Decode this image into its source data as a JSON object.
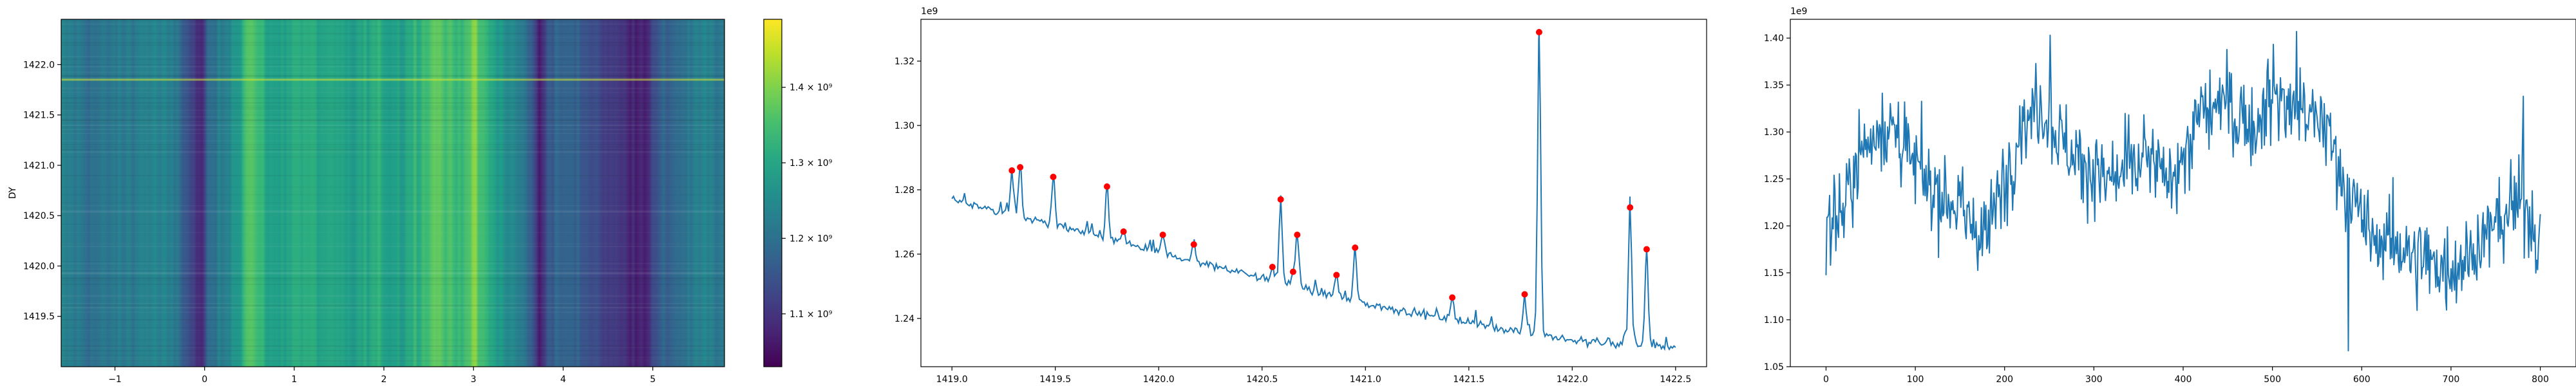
{
  "chart_data": [
    {
      "type": "heatmap",
      "title": "",
      "xlabel": "",
      "ylabel": "DY",
      "xlim": [
        -1.6,
        5.8
      ],
      "ylim": [
        1419.0,
        1422.45
      ],
      "xticks": [
        -1,
        0,
        1,
        2,
        3,
        4,
        5
      ],
      "xtick_labels": [
        "−1",
        "0",
        "1",
        "2",
        "3",
        "4",
        "5"
      ],
      "yticks": [
        1419.5,
        1420.0,
        1420.5,
        1421.0,
        1421.5,
        1422.0
      ],
      "ytick_labels": [
        "1419.5",
        "1420.0",
        "1420.5",
        "1421.0",
        "1421.5",
        "1422.0"
      ],
      "colormap": "viridis",
      "colorbar": {
        "range": [
          1030000000,
          1490000000
        ],
        "ticks": [
          1100000000,
          1200000000,
          1300000000,
          1400000000
        ],
        "tick_labels": [
          "1.1 × 10⁹",
          "1.2 × 10⁹",
          "1.3 × 10⁹",
          "1.4 × 10⁹"
        ]
      },
      "column_profile": {
        "x": [
          -1.6,
          -1.2,
          -0.9,
          -0.6,
          -0.3,
          -0.05,
          0.05,
          0.2,
          0.4,
          0.5,
          0.6,
          0.8,
          1.0,
          1.3,
          1.6,
          1.9,
          2.2,
          2.4,
          2.6,
          2.8,
          3.0,
          3.1,
          3.2,
          3.4,
          3.6,
          3.75,
          3.8,
          4.0,
          4.3,
          4.6,
          4.9,
          5.1,
          5.3,
          5.6,
          5.8
        ],
        "value": [
          1230000000,
          1200000000,
          1220000000,
          1240000000,
          1210000000,
          1070000000,
          1180000000,
          1230000000,
          1300000000,
          1380000000,
          1330000000,
          1280000000,
          1320000000,
          1300000000,
          1280000000,
          1310000000,
          1290000000,
          1340000000,
          1380000000,
          1330000000,
          1390000000,
          1340000000,
          1300000000,
          1250000000,
          1200000000,
          1060000000,
          1150000000,
          1180000000,
          1150000000,
          1100000000,
          1080000000,
          1160000000,
          1200000000,
          1230000000,
          1210000000
        ]
      },
      "bright_row_y": 1421.85
    },
    {
      "type": "line",
      "title": "",
      "xlabel": "",
      "ylabel": "",
      "offset_label": "1e9",
      "xlim": [
        1418.85,
        1422.65
      ],
      "ylim": [
        1.225,
        1.333
      ],
      "xticks": [
        1419.0,
        1419.5,
        1420.0,
        1420.5,
        1421.0,
        1421.5,
        1422.0,
        1422.5
      ],
      "xtick_labels": [
        "1419.0",
        "1419.5",
        "1420.0",
        "1420.5",
        "1421.0",
        "1421.5",
        "1422.0",
        "1422.5"
      ],
      "yticks": [
        1.24,
        1.26,
        1.28,
        1.3,
        1.32
      ],
      "ytick_labels": [
        "1.24",
        "1.26",
        "1.28",
        "1.30",
        "1.32"
      ],
      "line_color": "#1f77b4",
      "baseline": {
        "x": [
          1419.0,
          1420.0,
          1421.0,
          1422.0,
          1422.5
        ],
        "y": [
          1.277,
          1.2605,
          1.2445,
          1.233,
          1.231
        ]
      },
      "peaks": {
        "marker_color": "#ff0000",
        "x": [
          1419.29,
          1419.33,
          1419.49,
          1419.75,
          1419.83,
          1420.02,
          1420.17,
          1420.55,
          1420.59,
          1420.65,
          1420.67,
          1420.86,
          1420.95,
          1421.42,
          1421.77,
          1421.84,
          1422.28,
          1422.36
        ],
        "y": [
          1.286,
          1.287,
          1.284,
          1.281,
          1.267,
          1.266,
          1.263,
          1.256,
          1.277,
          1.2545,
          1.266,
          1.2535,
          1.262,
          1.2465,
          1.2475,
          1.329,
          1.2745,
          1.2615
        ]
      }
    },
    {
      "type": "line",
      "title": "",
      "xlabel": "",
      "ylabel": "",
      "offset_label": "1e9",
      "xlim": [
        -40,
        840
      ],
      "ylim": [
        1.05,
        1.42
      ],
      "xticks": [
        0,
        100,
        200,
        300,
        400,
        500,
        600,
        700,
        800
      ],
      "xtick_labels": [
        "0",
        "100",
        "200",
        "300",
        "400",
        "500",
        "600",
        "700",
        "800"
      ],
      "yticks": [
        1.05,
        1.1,
        1.15,
        1.2,
        1.25,
        1.3,
        1.35,
        1.4
      ],
      "ytick_labels": [
        "1.05",
        "1.10",
        "1.15",
        "1.20",
        "1.25",
        "1.30",
        "1.35",
        "1.40"
      ],
      "line_color": "#1f77b4",
      "n_points": 801,
      "trend": {
        "x": [
          0,
          20,
          40,
          60,
          80,
          100,
          120,
          140,
          160,
          180,
          200,
          220,
          240,
          260,
          280,
          300,
          320,
          340,
          360,
          380,
          400,
          420,
          440,
          460,
          480,
          500,
          520,
          540,
          560,
          580,
          600,
          620,
          640,
          660,
          680,
          700,
          720,
          740,
          760,
          780,
          800
        ],
        "y": [
          1.2,
          1.22,
          1.28,
          1.31,
          1.3,
          1.26,
          1.24,
          1.23,
          1.2,
          1.19,
          1.25,
          1.31,
          1.33,
          1.3,
          1.27,
          1.26,
          1.24,
          1.26,
          1.27,
          1.25,
          1.27,
          1.32,
          1.33,
          1.32,
          1.31,
          1.34,
          1.33,
          1.32,
          1.3,
          1.25,
          1.2,
          1.18,
          1.18,
          1.17,
          1.16,
          1.16,
          1.17,
          1.19,
          1.21,
          1.23,
          1.18
        ]
      }
    }
  ]
}
